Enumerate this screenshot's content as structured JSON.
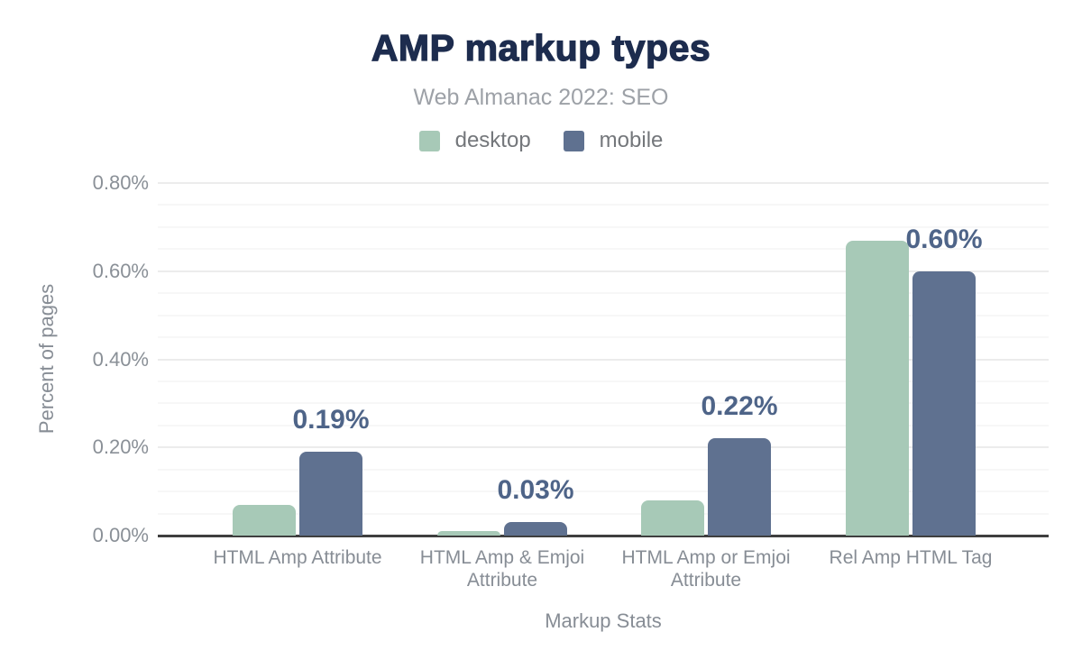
{
  "chart_data": {
    "type": "bar",
    "title": "AMP markup types",
    "subtitle": "Web Almanac 2022: SEO",
    "categories": [
      "HTML Amp Attribute",
      "HTML Amp & Emjoi Attribute",
      "HTML Amp or Emjoi Attribute",
      "Rel Amp HTML Tag"
    ],
    "series": [
      {
        "name": "desktop",
        "color": "#a7c9b7",
        "values": [
          0.07,
          0.01,
          0.08,
          0.67
        ]
      },
      {
        "name": "mobile",
        "color": "#5f7190",
        "values": [
          0.19,
          0.03,
          0.22,
          0.6
        ]
      }
    ],
    "data_labels": {
      "series": "mobile",
      "values": [
        "0.19%",
        "0.03%",
        "0.22%",
        "0.60%"
      ]
    },
    "xlabel": "Markup Stats",
    "ylabel": "Percent of pages",
    "ylim": [
      0,
      0.8
    ],
    "yticks": [
      "0.00%",
      "0.20%",
      "0.40%",
      "0.60%",
      "0.80%"
    ],
    "y_major_step": 0.2,
    "y_minor_step": 0.05,
    "grid": true,
    "legend_position": "top",
    "colors": {
      "title": "#1d2c4e",
      "subtitle": "#9da1a7",
      "data_label": "#4e6488",
      "axis_text": "#878d95",
      "axis_line": "#3f3f3f"
    }
  }
}
